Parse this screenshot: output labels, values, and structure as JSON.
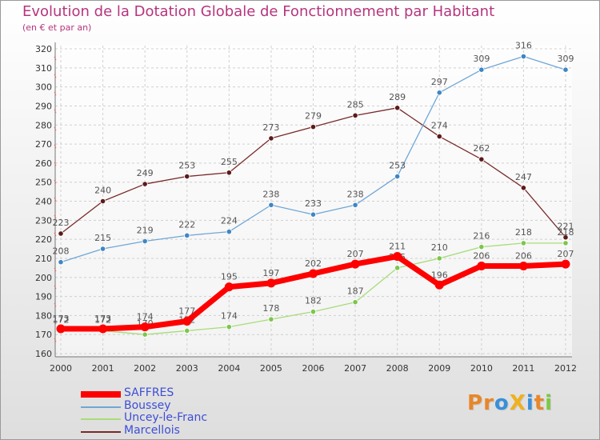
{
  "title": "Evolution de la Dotation Globale de Fonctionnement par Habitant",
  "subtitle": "(en € et par an)",
  "logo": {
    "text": "ProXiti",
    "letters": [
      "P",
      "r",
      "o",
      "X",
      "i",
      "t",
      "i"
    ]
  },
  "colors": {
    "SAFFRES": "#ff0000",
    "Boussey": "#6fa7d6",
    "Uncey-le-Franc": "#a8dc7a",
    "Marcellois": "#7a2a2a",
    "title": "#b5357e",
    "legend_text": "#3d4ed6"
  },
  "chart_data": {
    "type": "line",
    "title": "Evolution de la Dotation Globale de Fonctionnement par Habitant",
    "subtitle": "(en € et par an)",
    "xlabel": "",
    "ylabel": "",
    "categories": [
      "2000",
      "2001",
      "2002",
      "2003",
      "2004",
      "2005",
      "2006",
      "2007",
      "2008",
      "2009",
      "2010",
      "2011",
      "2012"
    ],
    "ylim": [
      160,
      320
    ],
    "yticks": [
      160,
      170,
      180,
      190,
      200,
      210,
      220,
      230,
      240,
      250,
      260,
      270,
      280,
      290,
      300,
      310,
      320
    ],
    "grid": true,
    "legend_position": "bottom-left",
    "series": [
      {
        "name": "Marcellois",
        "color": "#7a2a2a",
        "marker": "#5c1a1a",
        "values": [
          223,
          240,
          249,
          253,
          255,
          273,
          279,
          285,
          289,
          274,
          262,
          247,
          221
        ]
      },
      {
        "name": "Boussey",
        "color": "#6fa7d6",
        "marker": "#3f86c4",
        "values": [
          208,
          215,
          219,
          222,
          224,
          238,
          233,
          238,
          253,
          297,
          309,
          316,
          309
        ]
      },
      {
        "name": "Uncey-le-Franc",
        "color": "#a8dc7a",
        "marker": "#7cc64c",
        "values": [
          172,
          172,
          170,
          172,
          174,
          178,
          182,
          187,
          205,
          210,
          216,
          218,
          218
        ]
      },
      {
        "name": "SAFFRES",
        "color": "#ff0000",
        "marker": "#ff0000",
        "values": [
          173,
          173,
          174,
          177,
          195,
          197,
          202,
          207,
          211,
          196,
          206,
          206,
          207
        ]
      }
    ],
    "legend": [
      "SAFFRES",
      "Boussey",
      "Uncey-le-Franc",
      "Marcellois"
    ]
  }
}
